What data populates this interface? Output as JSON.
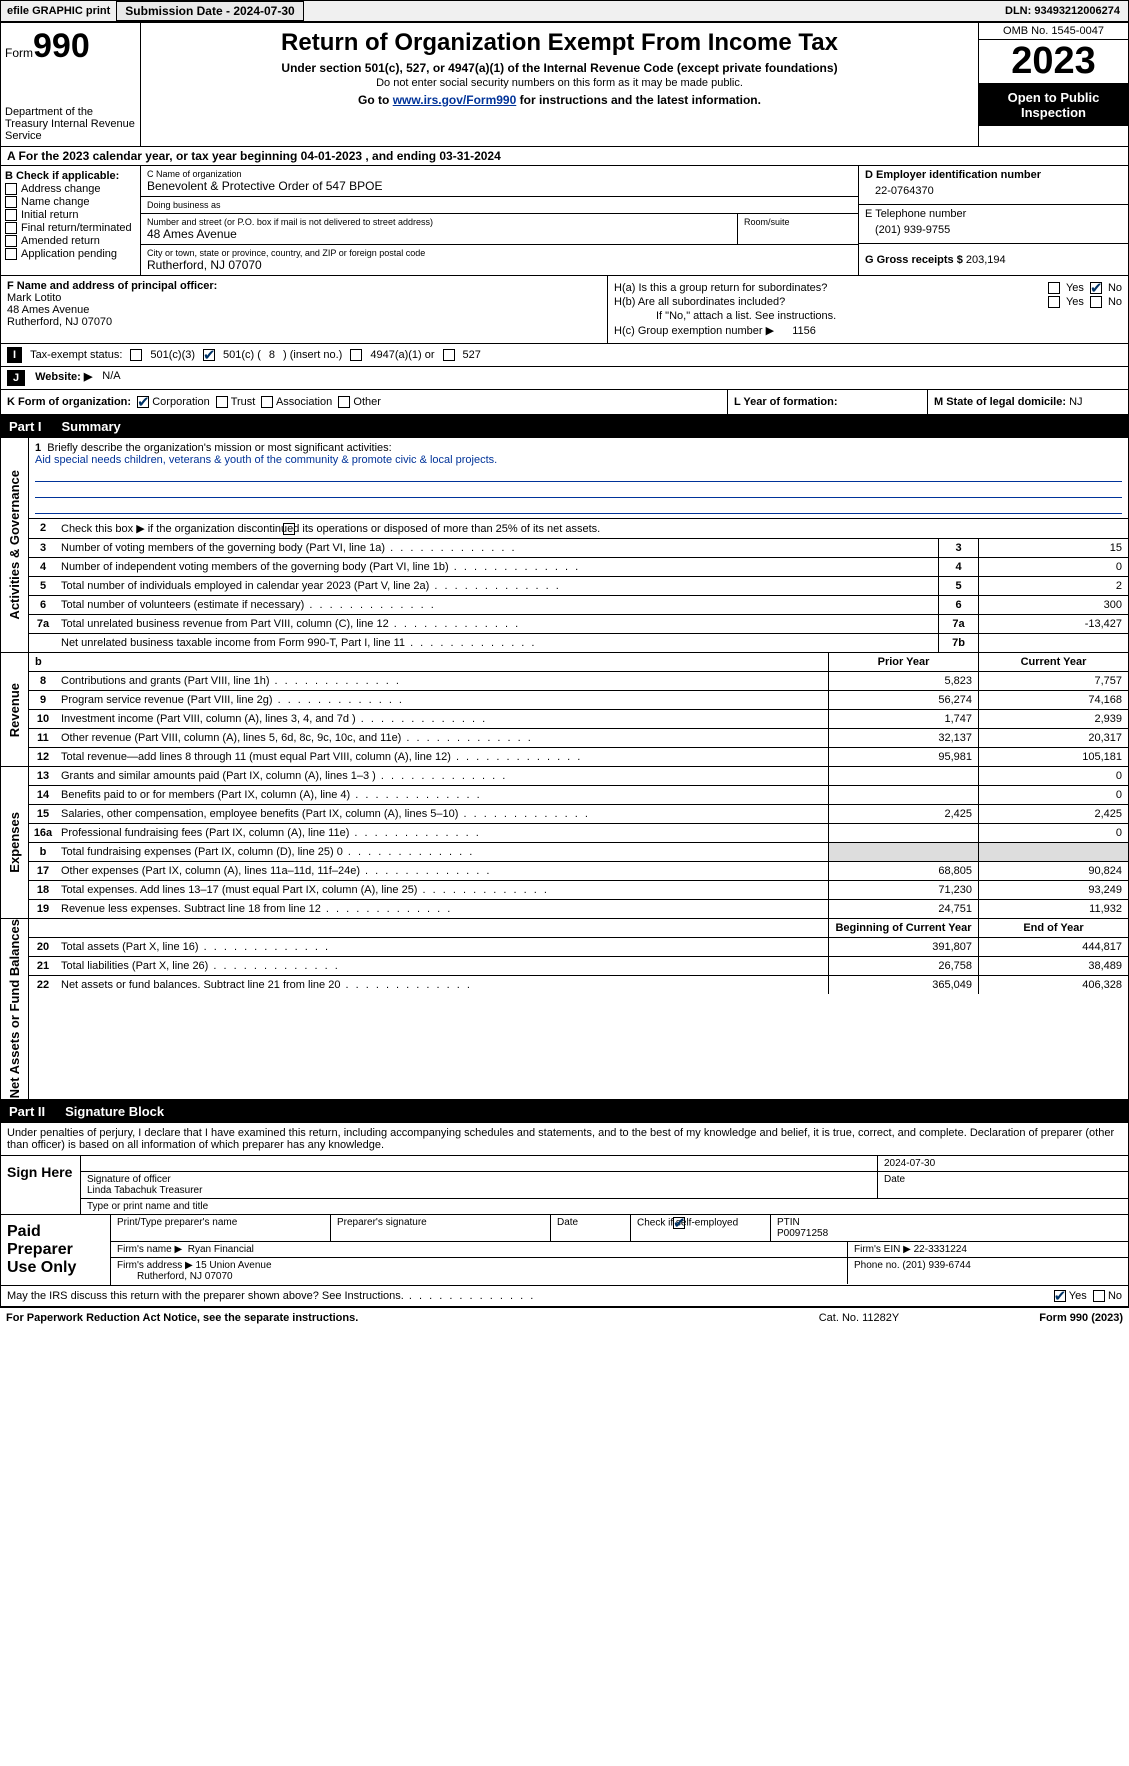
{
  "topbar": {
    "efile": "efile GRAPHIC print",
    "submission": "Submission Date - 2024-07-30",
    "dln": "DLN: 93493212006274"
  },
  "header": {
    "form_label": "Form",
    "form_num": "990",
    "dept": "Department of the Treasury Internal Revenue Service",
    "title": "Return of Organization Exempt From Income Tax",
    "subtitle": "Under section 501(c), 527, or 4947(a)(1) of the Internal Revenue Code (except private foundations)",
    "note": "Do not enter social security numbers on this form as it may be made public.",
    "goto_pre": "Go to ",
    "goto_link": "www.irs.gov/Form990",
    "goto_post": " for instructions and the latest information.",
    "omb": "OMB No. 1545-0047",
    "year": "2023",
    "open": "Open to Public Inspection"
  },
  "taxyear": "A For the 2023 calendar year, or tax year beginning 04-01-2023    , and ending 03-31-2024",
  "boxB": {
    "title": "B Check if applicable:",
    "opts": [
      "Address change",
      "Name change",
      "Initial return",
      "Final return/terminated",
      "Amended return",
      "Application pending"
    ]
  },
  "boxC": {
    "name_lbl": "C Name of organization",
    "name": "Benevolent & Protective Order of 547 BPOE",
    "dba_lbl": "Doing business as",
    "dba": "",
    "addr_lbl": "Number and street (or P.O. box if mail is not delivered to street address)",
    "addr": "48 Ames Avenue",
    "room_lbl": "Room/suite",
    "city_lbl": "City or town, state or province, country, and ZIP or foreign postal code",
    "city": "Rutherford, NJ  07070"
  },
  "boxD": {
    "lbl": "D Employer identification number",
    "val": "22-0764370"
  },
  "boxE": {
    "lbl": "E Telephone number",
    "val": "(201) 939-9755"
  },
  "boxG": {
    "lbl": "G Gross receipts $",
    "val": "203,194"
  },
  "boxF": {
    "lbl": "F  Name and address of principal officer:",
    "name": "Mark Lotito",
    "addr1": "48 Ames Avenue",
    "addr2": "Rutherford, NJ  07070"
  },
  "boxH": {
    "ha": "H(a)  Is this a group return for subordinates?",
    "hb": "H(b)  Are all subordinates included?",
    "hb_note": "If \"No,\" attach a list. See instructions.",
    "hc": "H(c)  Group exemption number ▶",
    "hc_val": "1156",
    "yes": "Yes",
    "no": "No"
  },
  "boxI": {
    "lbl": "Tax-exempt status:",
    "o1": "501(c)(3)",
    "o2a": "501(c) (",
    "o2b": "8",
    "o2c": ") (insert no.)",
    "o3": "4947(a)(1) or",
    "o4": "527"
  },
  "boxJ": {
    "lbl": "Website: ▶",
    "val": "N/A"
  },
  "boxK": {
    "lbl": "K Form of organization:",
    "opts": [
      "Corporation",
      "Trust",
      "Association",
      "Other"
    ]
  },
  "boxL": {
    "lbl": "L Year of formation:",
    "val": ""
  },
  "boxM": {
    "lbl": "M State of legal domicile:",
    "val": "NJ"
  },
  "part1": {
    "tag": "Part I",
    "title": "Summary"
  },
  "sec_ag": {
    "label": "Activities & Governance",
    "l1": "Briefly describe the organization's mission or most significant activities:",
    "l1_val": "Aid special needs children, veterans & youth of the community & promote civic & local projects.",
    "l2": "Check this box ▶       if the organization discontinued its operations or disposed of more than 25% of its net assets.",
    "rows": [
      {
        "n": "3",
        "t": "Number of voting members of the governing body (Part VI, line 1a)",
        "b": "3",
        "v": "15"
      },
      {
        "n": "4",
        "t": "Number of independent voting members of the governing body (Part VI, line 1b)",
        "b": "4",
        "v": "0"
      },
      {
        "n": "5",
        "t": "Total number of individuals employed in calendar year 2023 (Part V, line 2a)",
        "b": "5",
        "v": "2"
      },
      {
        "n": "6",
        "t": "Total number of volunteers (estimate if necessary)",
        "b": "6",
        "v": "300"
      },
      {
        "n": "7a",
        "t": "Total unrelated business revenue from Part VIII, column (C), line 12",
        "b": "7a",
        "v": "-13,427"
      },
      {
        "n": "",
        "t": "Net unrelated business taxable income from Form 990-T, Part I, line 11",
        "b": "7b",
        "v": ""
      }
    ]
  },
  "sec_rev": {
    "label": "Revenue",
    "prior": "Prior Year",
    "curr": "Current Year",
    "rows": [
      {
        "n": "8",
        "t": "Contributions and grants (Part VIII, line 1h)",
        "p": "5,823",
        "c": "7,757"
      },
      {
        "n": "9",
        "t": "Program service revenue (Part VIII, line 2g)",
        "p": "56,274",
        "c": "74,168"
      },
      {
        "n": "10",
        "t": "Investment income (Part VIII, column (A), lines 3, 4, and 7d )",
        "p": "1,747",
        "c": "2,939"
      },
      {
        "n": "11",
        "t": "Other revenue (Part VIII, column (A), lines 5, 6d, 8c, 9c, 10c, and 11e)",
        "p": "32,137",
        "c": "20,317"
      },
      {
        "n": "12",
        "t": "Total revenue—add lines 8 through 11 (must equal Part VIII, column (A), line 12)",
        "p": "95,981",
        "c": "105,181"
      }
    ]
  },
  "sec_exp": {
    "label": "Expenses",
    "rows": [
      {
        "n": "13",
        "t": "Grants and similar amounts paid (Part IX, column (A), lines 1–3 )",
        "p": "",
        "c": "0"
      },
      {
        "n": "14",
        "t": "Benefits paid to or for members (Part IX, column (A), line 4)",
        "p": "",
        "c": "0"
      },
      {
        "n": "15",
        "t": "Salaries, other compensation, employee benefits (Part IX, column (A), lines 5–10)",
        "p": "2,425",
        "c": "2,425"
      },
      {
        "n": "16a",
        "t": "Professional fundraising fees (Part IX, column (A), line 11e)",
        "p": "",
        "c": "0"
      },
      {
        "n": "b",
        "t": "Total fundraising expenses (Part IX, column (D), line 25) 0",
        "p": "shaded",
        "c": "shaded"
      },
      {
        "n": "17",
        "t": "Other expenses (Part IX, column (A), lines 11a–11d, 11f–24e)",
        "p": "68,805",
        "c": "90,824"
      },
      {
        "n": "18",
        "t": "Total expenses. Add lines 13–17 (must equal Part IX, column (A), line 25)",
        "p": "71,230",
        "c": "93,249"
      },
      {
        "n": "19",
        "t": "Revenue less expenses. Subtract line 18 from line 12",
        "p": "24,751",
        "c": "11,932"
      }
    ]
  },
  "sec_net": {
    "label": "Net Assets or Fund Balances",
    "begin": "Beginning of Current Year",
    "end": "End of Year",
    "rows": [
      {
        "n": "20",
        "t": "Total assets (Part X, line 16)",
        "p": "391,807",
        "c": "444,817"
      },
      {
        "n": "21",
        "t": "Total liabilities (Part X, line 26)",
        "p": "26,758",
        "c": "38,489"
      },
      {
        "n": "22",
        "t": "Net assets or fund balances. Subtract line 21 from line 20",
        "p": "365,049",
        "c": "406,328"
      }
    ]
  },
  "part2": {
    "tag": "Part II",
    "title": "Signature Block"
  },
  "sig_intro": "Under penalties of perjury, I declare that I have examined this return, including accompanying schedules and statements, and to the best of my knowledge and belief, it is true, correct, and complete. Declaration of preparer (other than officer) is based on all information of which preparer has any knowledge.",
  "sign": {
    "here": "Sign Here",
    "date": "2024-07-30",
    "sig_lbl": "Signature of officer",
    "date_lbl": "Date",
    "officer": "Linda Tabachuk Treasurer",
    "type_lbl": "Type or print name and title"
  },
  "prep": {
    "label": "Paid Preparer Use Only",
    "pt_lbl": "Print/Type preparer's name",
    "ps_lbl": "Preparer's signature",
    "d_lbl": "Date",
    "se_lbl": "Check          if self-employed",
    "ptin_lbl": "PTIN",
    "ptin": "P00971258",
    "firm_lbl": "Firm's name ▶",
    "firm": "Ryan Financial",
    "ein_lbl": "Firm's EIN ▶",
    "ein": "22-3331224",
    "addr_lbl": "Firm's address ▶",
    "addr1": "15 Union Avenue",
    "addr2": "Rutherford, NJ  07070",
    "phone_lbl": "Phone no.",
    "phone": "(201) 939-6744"
  },
  "discuss": {
    "txt": "May the IRS discuss this return with the preparer shown above? See Instructions.",
    "yes": "Yes",
    "no": "No"
  },
  "footer": {
    "left": "For Paperwork Reduction Act Notice, see the separate instructions.",
    "mid": "Cat. No. 11282Y",
    "right": "Form 990 (2023)"
  }
}
